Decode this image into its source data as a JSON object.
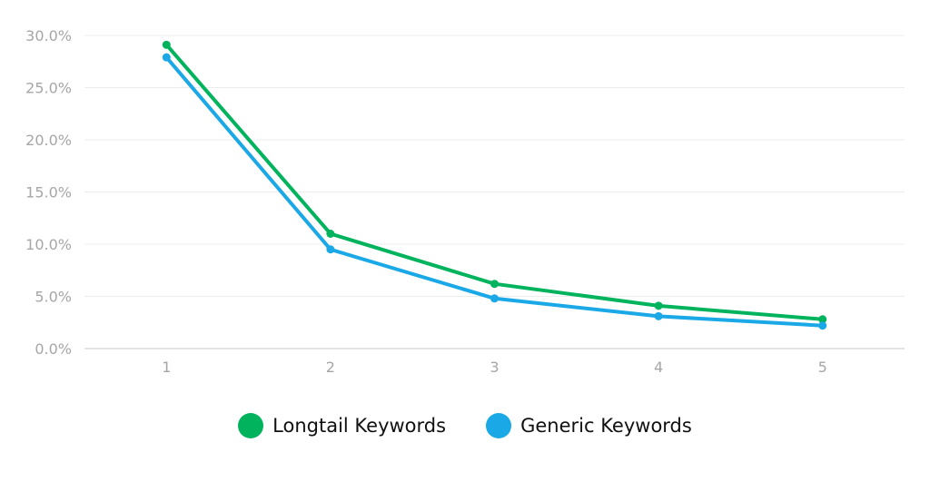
{
  "chart_data": {
    "type": "line",
    "title": "",
    "xlabel": "",
    "ylabel": "",
    "x": [
      "1",
      "2",
      "3",
      "4",
      "5"
    ],
    "y_ticks": [
      "0.0%",
      "5.0%",
      "10.0%",
      "15.0%",
      "20.0%",
      "25.0%",
      "30.0%"
    ],
    "ylim": [
      0,
      30
    ],
    "grid": true,
    "legend_position": "bottom",
    "series": [
      {
        "name": "Longtail Keywords",
        "color": "#00b35c",
        "values": [
          29.1,
          11.0,
          6.2,
          4.1,
          2.8
        ]
      },
      {
        "name": "Generic Keywords",
        "color": "#1aa8e6",
        "values": [
          27.9,
          9.5,
          4.8,
          3.1,
          2.2
        ]
      }
    ]
  }
}
